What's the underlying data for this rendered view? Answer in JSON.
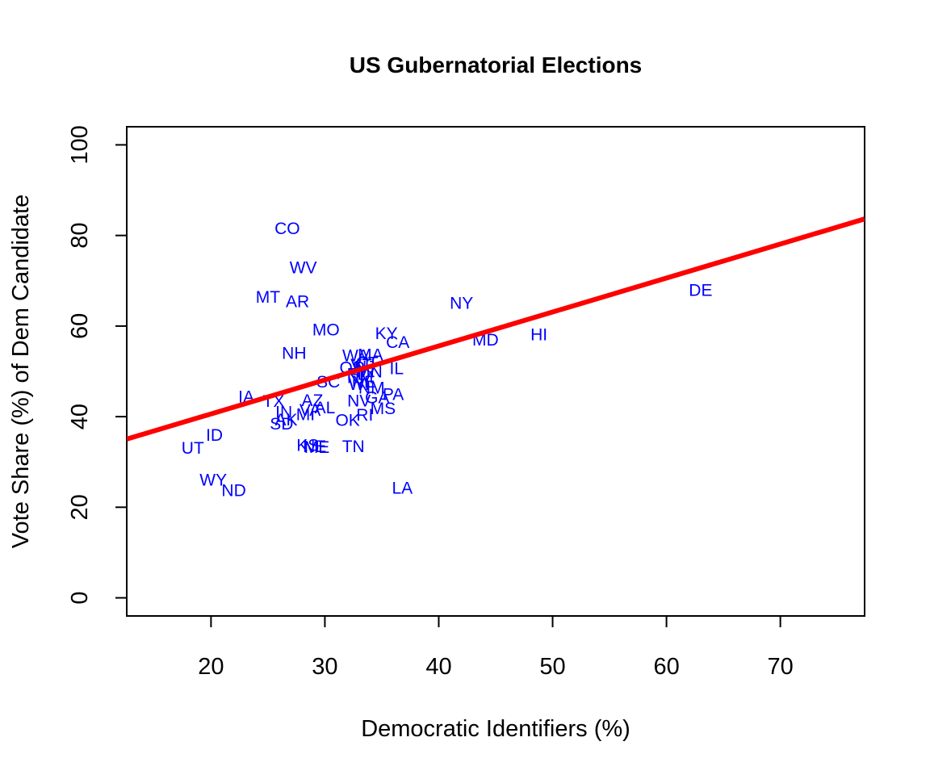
{
  "chart_data": {
    "type": "scatter",
    "title": "US Gubernatorial Elections",
    "xlabel": "Democratic Identifiers (%)",
    "ylabel": "Vote Share (%) of Dem Candidate",
    "xlim": [
      12.6,
      77.4
    ],
    "ylim": [
      -4,
      104
    ],
    "xticks": [
      20,
      30,
      40,
      50,
      60,
      70
    ],
    "yticks": [
      0,
      20,
      40,
      60,
      80,
      100
    ],
    "grid": false,
    "point_color": "#0000ff",
    "fit_line": {
      "color": "#ff0000",
      "intercept": 25.6,
      "slope": 0.75
    },
    "points": [
      {
        "label": "CO",
        "x": 26.7,
        "y": 81.5
      },
      {
        "label": "WV",
        "x": 28.1,
        "y": 72.8
      },
      {
        "label": "MT",
        "x": 25.0,
        "y": 66.3
      },
      {
        "label": "AR",
        "x": 27.6,
        "y": 65.3
      },
      {
        "label": "NY",
        "x": 42.0,
        "y": 65.0
      },
      {
        "label": "DE",
        "x": 63.0,
        "y": 67.8
      },
      {
        "label": "MO",
        "x": 30.1,
        "y": 59.1
      },
      {
        "label": "KY",
        "x": 35.4,
        "y": 58.3
      },
      {
        "label": "CA",
        "x": 36.4,
        "y": 56.3
      },
      {
        "label": "MD",
        "x": 44.1,
        "y": 56.9
      },
      {
        "label": "HI",
        "x": 48.8,
        "y": 58.0
      },
      {
        "label": "NH",
        "x": 27.3,
        "y": 53.9
      },
      {
        "label": "WA",
        "x": 32.7,
        "y": 53.4
      },
      {
        "label": "MA",
        "x": 34.0,
        "y": 53.6
      },
      {
        "label": "CT",
        "x": 33.7,
        "y": 51.8
      },
      {
        "label": "OR",
        "x": 32.4,
        "y": 50.7
      },
      {
        "label": "NJ",
        "x": 33.5,
        "y": 50.9
      },
      {
        "label": "MN",
        "x": 33.9,
        "y": 49.8
      },
      {
        "label": "VT",
        "x": 33.2,
        "y": 51.3
      },
      {
        "label": "IL",
        "x": 36.3,
        "y": 50.5
      },
      {
        "label": "FL",
        "x": 32.8,
        "y": 49.3
      },
      {
        "label": "NM",
        "x": 33.1,
        "y": 48.6
      },
      {
        "label": "SC",
        "x": 30.3,
        "y": 47.6
      },
      {
        "label": "WI",
        "x": 33.0,
        "y": 47.1
      },
      {
        "label": "NE",
        "x": 33.4,
        "y": 47.6
      },
      {
        "label": "NM",
        "x": 34.1,
        "y": 46.3
      },
      {
        "label": "PA",
        "x": 36.0,
        "y": 44.8
      },
      {
        "label": "IA",
        "x": 23.1,
        "y": 44.3
      },
      {
        "label": "TX",
        "x": 25.5,
        "y": 43.3
      },
      {
        "label": "AZ",
        "x": 28.9,
        "y": 43.5
      },
      {
        "label": "NV",
        "x": 33.0,
        "y": 43.4
      },
      {
        "label": "GA",
        "x": 34.6,
        "y": 44.1
      },
      {
        "label": "AL",
        "x": 30.0,
        "y": 41.9
      },
      {
        "label": "VA",
        "x": 28.7,
        "y": 41.4
      },
      {
        "label": "IN",
        "x": 26.4,
        "y": 40.9
      },
      {
        "label": "MI",
        "x": 28.3,
        "y": 40.4
      },
      {
        "label": "MS",
        "x": 35.1,
        "y": 41.7
      },
      {
        "label": "RI",
        "x": 33.5,
        "y": 40.3
      },
      {
        "label": "AK",
        "x": 26.6,
        "y": 39.2
      },
      {
        "label": "OK",
        "x": 32.0,
        "y": 39.1
      },
      {
        "label": "SD",
        "x": 26.2,
        "y": 38.3
      },
      {
        "label": "ID",
        "x": 20.3,
        "y": 35.8
      },
      {
        "label": "KS",
        "x": 28.5,
        "y": 33.6
      },
      {
        "label": "NE",
        "x": 29.1,
        "y": 33.3
      },
      {
        "label": "ME",
        "x": 29.3,
        "y": 33.2
      },
      {
        "label": "TN",
        "x": 32.5,
        "y": 33.3
      },
      {
        "label": "UT",
        "x": 18.4,
        "y": 33.0
      },
      {
        "label": "WY",
        "x": 20.2,
        "y": 25.9
      },
      {
        "label": "ND",
        "x": 22.0,
        "y": 23.6
      },
      {
        "label": "LA",
        "x": 36.8,
        "y": 24.2
      }
    ]
  }
}
